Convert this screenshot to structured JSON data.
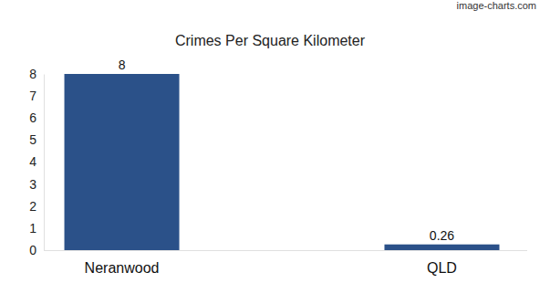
{
  "chart_data": {
    "type": "bar",
    "title": "Crimes Per Square Kilometer",
    "annotations": [
      "image-charts.com"
    ],
    "categories": [
      "Neranwood",
      "QLD"
    ],
    "values": [
      8,
      0.26
    ],
    "color": "#2b5189",
    "ylim": [
      0,
      8
    ],
    "yticks": [
      0,
      1,
      2,
      3,
      4,
      5,
      6,
      7,
      8
    ],
    "grid": false,
    "data_labels": true
  }
}
